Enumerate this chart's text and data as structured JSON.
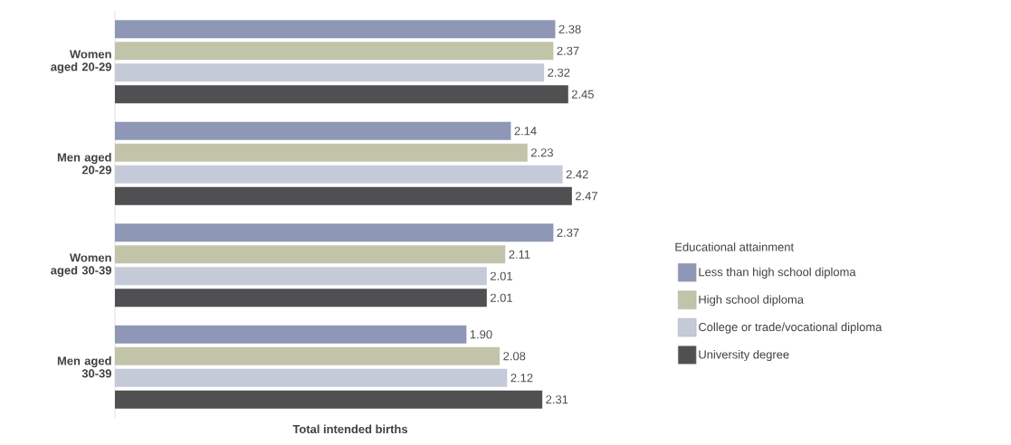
{
  "chart_data": {
    "type": "bar",
    "orientation": "horizontal",
    "xlabel": "Total intended births",
    "legend_title": "Educational attainment",
    "categories": [
      "Women aged 20-29",
      "Men aged 20-29",
      "Women aged 30-39",
      "Men aged 30-39"
    ],
    "series": [
      {
        "name": "Less than high school diploma",
        "color": "#8e97b6",
        "values": [
          2.38,
          2.14,
          2.37,
          1.9
        ],
        "value_labels": [
          "2.38",
          "2.14",
          "2.37",
          "1.90"
        ]
      },
      {
        "name": "High school diploma",
        "color": "#c2c4aa",
        "values": [
          2.37,
          2.23,
          2.11,
          2.08
        ],
        "value_labels": [
          "2.37",
          "2.23",
          "2.11",
          "2.08"
        ]
      },
      {
        "name": "College or trade/vocational diploma",
        "color": "#c5cad8",
        "values": [
          2.32,
          2.42,
          2.01,
          2.12
        ],
        "value_labels": [
          "2.32",
          "2.42",
          "2.01",
          "2.12"
        ]
      },
      {
        "name": "University degree",
        "color": "#505052",
        "values": [
          2.45,
          2.47,
          2.01,
          2.31
        ],
        "value_labels": [
          "2.45",
          "2.47",
          "2.01",
          "2.31"
        ]
      }
    ],
    "tick_labels": "y",
    "legend": "right"
  }
}
